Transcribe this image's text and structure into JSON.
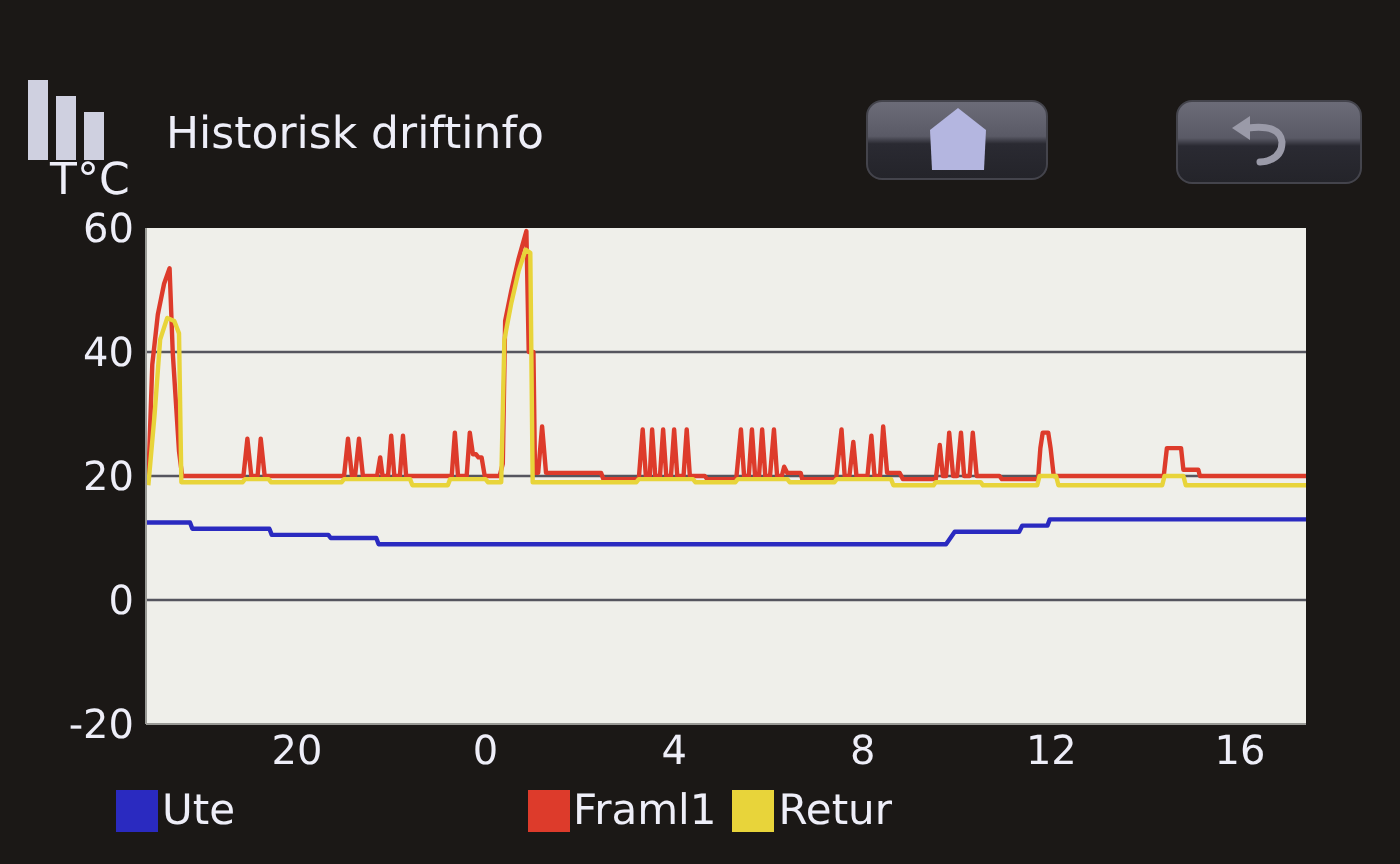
{
  "chart_data": {
    "type": "line",
    "title": "Historisk driftinfo",
    "ylabel": "T°C",
    "xlim": [
      "--01-01T16:48",
      "--01-02T17:24"
    ],
    "xticks": [
      {
        "value": "--01-01T20:00",
        "label": "20"
      },
      {
        "value": "--01-02T00:00",
        "label": "0"
      },
      {
        "value": "--01-02T04:00",
        "label": "4"
      },
      {
        "value": "--01-02T08:00",
        "label": "8"
      },
      {
        "value": "--01-02T12:00",
        "label": "12"
      },
      {
        "value": "--01-02T16:00",
        "label": "16"
      }
    ],
    "ylim": [
      -20,
      60
    ],
    "yticks": [
      -20,
      0,
      20,
      40,
      60
    ],
    "grid": "y",
    "legend": "bottom",
    "series": [
      {
        "name": "Ute",
        "color": "#2a2ac0",
        "x": [
          "--01-01T16:48",
          "--01-01T17:44",
          "--01-01T17:47",
          "--01-01T19:25",
          "--01-01T19:28",
          "--01-01T20:40",
          "--01-01T20:43",
          "--01-01T21:41",
          "--01-01T21:44",
          "--01-02T09:46",
          "--01-02T09:57",
          "--01-02T11:19",
          "--01-02T11:23",
          "--01-02T11:55",
          "--01-02T11:58",
          "--01-02T17:24"
        ],
        "values": [
          12.5,
          12.5,
          11.5,
          11.5,
          10.5,
          10.5,
          10,
          10,
          9,
          9,
          11,
          11,
          12,
          12,
          13,
          13
        ]
      },
      {
        "name": "Framl1",
        "color": "#dd3b2b",
        "x": [
          "--01-01T16:51",
          "--01-01T16:56",
          "--01-01T17:03",
          "--01-01T17:11",
          "--01-01T17:18",
          "--01-01T17:22",
          "--01-01T17:30",
          "--01-01T17:34",
          "--01-01T18:52",
          "--01-01T18:57",
          "--01-01T19:02",
          "--01-01T19:10",
          "--01-01T19:14",
          "--01-01T19:19",
          "--01-01T21:00",
          "--01-01T21:05",
          "--01-01T21:10",
          "--01-01T21:14",
          "--01-01T21:19",
          "--01-01T21:24",
          "--01-01T21:42",
          "--01-01T21:46",
          "--01-01T21:49",
          "--01-01T21:56",
          "--01-01T22:00",
          "--01-01T22:04",
          "--01-01T22:11",
          "--01-01T22:15",
          "--01-01T22:19",
          "--01-01T23:17",
          "--01-01T23:21",
          "--01-01T23:25",
          "--01-01T23:36",
          "--01-01T23:40",
          "--01-01T23:44",
          "--01-01T23:48",
          "--01-01T23:51",
          "--01-01T23:55",
          "--01-01T23:59",
          "--01-02T00:18",
          "--01-02T00:22",
          "--01-02T00:25",
          "--01-02T00:33",
          "--01-02T00:42",
          "--01-02T00:52",
          "--01-02T00:55",
          "--01-02T01:01",
          "--01-02T01:03",
          "--01-02T01:07",
          "--01-02T01:12",
          "--01-02T01:17",
          "--01-02T02:27",
          "--01-02T02:30",
          "--01-02T03:15",
          "--01-02T03:20",
          "--01-02T03:24",
          "--01-02T03:29",
          "--01-02T03:32",
          "--01-02T03:36",
          "--01-02T03:42",
          "--01-02T03:46",
          "--01-02T03:50",
          "--01-02T03:56",
          "--01-02T04:00",
          "--01-02T04:04",
          "--01-02T04:12",
          "--01-02T04:16",
          "--01-02T04:20",
          "--01-02T04:39",
          "--01-02T04:42",
          "--01-02T05:19",
          "--01-02T05:25",
          "--01-02T05:29",
          "--01-02T05:35",
          "--01-02T05:39",
          "--01-02T05:43",
          "--01-02T05:48",
          "--01-02T05:52",
          "--01-02T05:56",
          "--01-02T06:02",
          "--01-02T06:07",
          "--01-02T06:11",
          "--01-02T06:17",
          "--01-02T06:20",
          "--01-02T06:24",
          "--01-02T06:41",
          "--01-02T06:43",
          "--01-02T07:26",
          "--01-02T07:33",
          "--01-02T07:37",
          "--01-02T07:43",
          "--01-02T07:48",
          "--01-02T07:52",
          "--01-02T08:06",
          "--01-02T08:11",
          "--01-02T08:15",
          "--01-02T08:22",
          "--01-02T08:26",
          "--01-02T08:31",
          "--01-02T08:47",
          "--01-02T08:51",
          "--01-02T09:33",
          "--01-02T09:38",
          "--01-02T09:42",
          "--01-02T09:46",
          "--01-02T09:50",
          "--01-02T09:55",
          "--01-02T10:00",
          "--01-02T10:05",
          "--01-02T10:09",
          "--01-02T10:16",
          "--01-02T10:20",
          "--01-02T10:25",
          "--01-02T10:54",
          "--01-02T10:57",
          "--01-02T11:43",
          "--01-02T11:46",
          "--01-02T11:49",
          "--01-02T11:56",
          "--01-02T11:59",
          "--01-02T12:03",
          "--01-02T14:23",
          "--01-02T14:27",
          "--01-02T14:45",
          "--01-02T14:48",
          "--01-02T15:07",
          "--01-02T15:09",
          "--01-02T17:24"
        ],
        "values": [
          19.5,
          38,
          46,
          51,
          53.5,
          40,
          24,
          20,
          20,
          26,
          20,
          20,
          26,
          20,
          20,
          26,
          20,
          20,
          26,
          20,
          20,
          23,
          20,
          20,
          26.5,
          20,
          20,
          26.5,
          20,
          20,
          27,
          20,
          20,
          27,
          23.5,
          23.5,
          23,
          23,
          20,
          20,
          22,
          45,
          50,
          55,
          59.5,
          40,
          40,
          20.5,
          20.5,
          28,
          20.5,
          20.5,
          19.5,
          19.5,
          27.5,
          20,
          20,
          27.5,
          20,
          20,
          27.5,
          20,
          20,
          27.5,
          20,
          20,
          27.5,
          20,
          20,
          19.5,
          19.5,
          27.5,
          20,
          20,
          27.5,
          20,
          20,
          27.5,
          20,
          20,
          27.5,
          20,
          20,
          21.5,
          20.5,
          20.5,
          19.5,
          19.5,
          27.5,
          20,
          20,
          25.5,
          20,
          20,
          26.5,
          20,
          20,
          28,
          20.5,
          20.5,
          19.5,
          19.5,
          25,
          20,
          20,
          27,
          20,
          20,
          27,
          20,
          20,
          27,
          20,
          20,
          19.5,
          19.5,
          24.5,
          27,
          27,
          24.5,
          20,
          20,
          24.5,
          24.5,
          21,
          21,
          20,
          20
        ]
      },
      {
        "name": "Retur",
        "color": "#e8d43a",
        "x": [
          "--01-01T16:51",
          "--01-01T16:59",
          "--01-01T17:06",
          "--01-01T17:15",
          "--01-01T17:24",
          "--01-01T17:30",
          "--01-01T17:33",
          "--01-01T18:51",
          "--01-01T18:54",
          "--01-01T19:24",
          "--01-01T19:27",
          "--01-01T20:57",
          "--01-01T21:00",
          "--01-01T22:24",
          "--01-01T22:27",
          "--01-01T23:12",
          "--01-01T23:15",
          "--01-02T00:00",
          "--01-02T00:03",
          "--01-02T00:20",
          "--01-02T00:24",
          "--01-02T00:33",
          "--01-02T00:42",
          "--01-02T00:51",
          "--01-02T00:57",
          "--01-02T01:00",
          "--01-02T03:12",
          "--01-02T03:15",
          "--01-02T04:24",
          "--01-02T04:27",
          "--01-02T05:18",
          "--01-02T05:21",
          "--01-02T06:24",
          "--01-02T06:27",
          "--01-02T07:24",
          "--01-02T07:27",
          "--01-02T08:36",
          "--01-02T08:39",
          "--01-02T09:30",
          "--01-02T09:33",
          "--01-02T10:30",
          "--01-02T10:33",
          "--01-02T11:42",
          "--01-02T11:45",
          "--01-02T12:06",
          "--01-02T12:09",
          "--01-02T14:21",
          "--01-02T14:24",
          "--01-02T14:48",
          "--01-02T14:51",
          "--01-02T17:24"
        ],
        "values": [
          18.5,
          30,
          42,
          45.5,
          45,
          43,
          19,
          19,
          19.5,
          19.5,
          19,
          19,
          19.5,
          19.5,
          18.5,
          18.5,
          19.5,
          19.5,
          19,
          19,
          42,
          48,
          53,
          56.5,
          56,
          19,
          19,
          19.5,
          19.5,
          19,
          19,
          19.5,
          19.5,
          19,
          19,
          19.5,
          19.5,
          18.5,
          18.5,
          19,
          19,
          18.5,
          18.5,
          20,
          20,
          18.5,
          18.5,
          20,
          20,
          18.5,
          18.5
        ]
      }
    ]
  }
}
